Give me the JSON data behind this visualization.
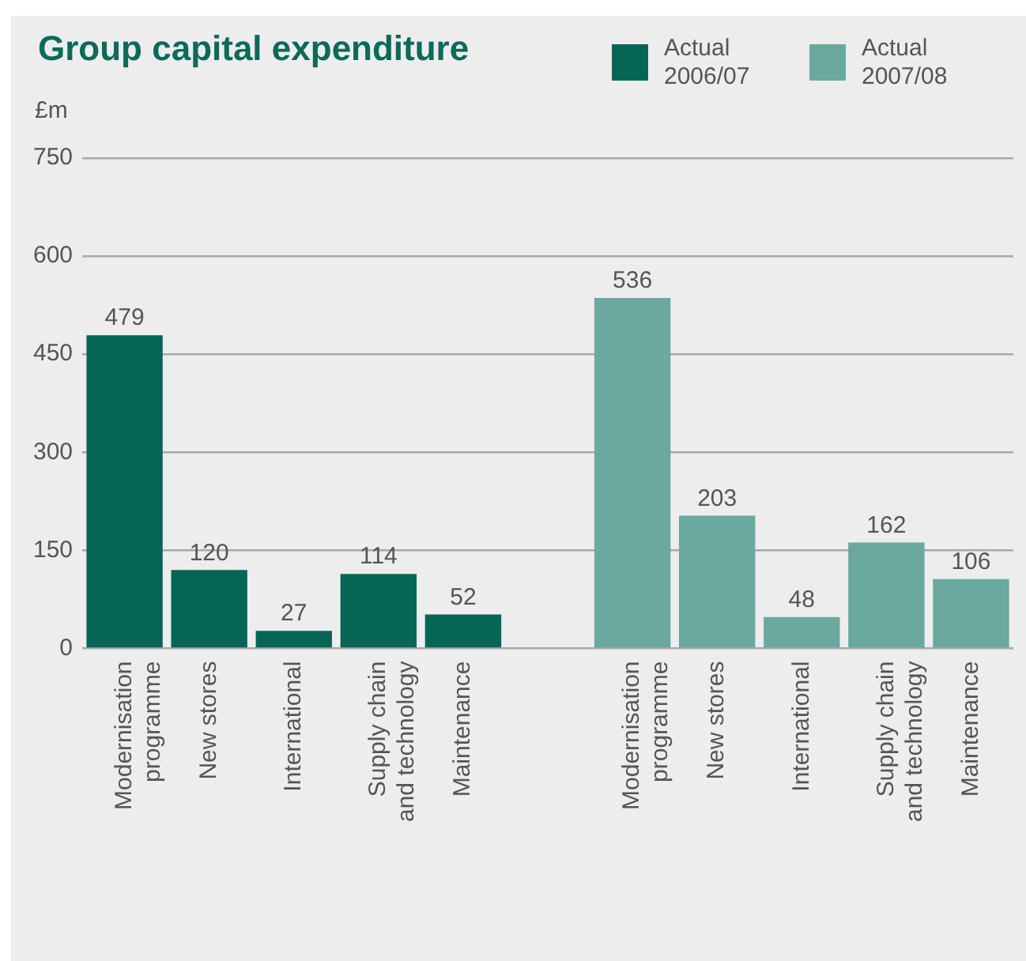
{
  "chart_data": {
    "type": "bar",
    "title": "Group capital expenditure",
    "ylabel": "£m",
    "categories": [
      [
        "Modernisation",
        "programme"
      ],
      "New stores",
      "International",
      [
        "Supply chain",
        "and technology"
      ],
      "Maintenance",
      null,
      [
        "Modernisation",
        "programme"
      ],
      "New stores",
      "International",
      [
        "Supply chain",
        "and technology"
      ],
      "Maintenance"
    ],
    "series": [
      {
        "name": "Actual 2006/07",
        "color": "#066656",
        "values": [
          479,
          120,
          27,
          114,
          52,
          null,
          null,
          null,
          null,
          null,
          null
        ]
      },
      {
        "name": "Actual 2007/08",
        "color": "#6ba89e",
        "values": [
          null,
          null,
          null,
          null,
          null,
          null,
          536,
          203,
          48,
          162,
          106
        ]
      }
    ],
    "ylim": [
      0,
      750
    ],
    "yticks": [
      0,
      150,
      300,
      450,
      600,
      750
    ],
    "grid": "y",
    "legend": "top right",
    "data_labels": true
  }
}
